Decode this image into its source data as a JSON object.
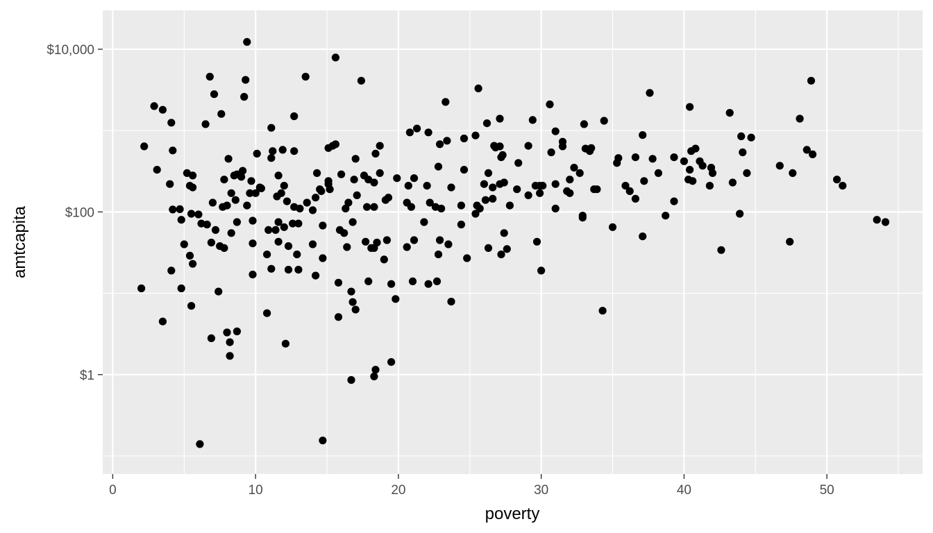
{
  "chart_data": {
    "type": "scatter",
    "title": "",
    "xlabel": "poverty",
    "ylabel": "amtcapita",
    "x_scale": "linear",
    "y_scale": "log10",
    "xlim": [
      -0.7,
      56.7
    ],
    "ylim": [
      0.06,
      30000
    ],
    "x_ticks": [
      0,
      10,
      20,
      30,
      40,
      50
    ],
    "x_tick_labels": [
      "0",
      "10",
      "20",
      "30",
      "40",
      "50"
    ],
    "y_ticks": [
      1,
      100,
      10000
    ],
    "y_tick_labels": [
      "$1",
      "$100",
      "$10,000"
    ],
    "grid": true,
    "legend": "none",
    "point_color": "#000000",
    "panel_background": "#EBEBEB",
    "points": [
      [
        9.4,
        12300
      ],
      [
        15.6,
        7900
      ],
      [
        6.8,
        4600
      ],
      [
        9.3,
        4200
      ],
      [
        13.5,
        4600
      ],
      [
        17.4,
        4100
      ],
      [
        7.1,
        2800
      ],
      [
        9.2,
        2600
      ],
      [
        2.9,
        2000
      ],
      [
        3.5,
        1800
      ],
      [
        7.6,
        1600
      ],
      [
        12.7,
        1500
      ],
      [
        4.1,
        1250
      ],
      [
        6.5,
        1200
      ],
      [
        11.1,
        1080
      ],
      [
        25.6,
        3300
      ],
      [
        23.3,
        2250
      ],
      [
        30.6,
        2100
      ],
      [
        26.2,
        1230
      ],
      [
        27.1,
        1400
      ],
      [
        29.4,
        1350
      ],
      [
        21.3,
        1060
      ],
      [
        20.8,
        950
      ],
      [
        22.1,
        950
      ],
      [
        2.2,
        640
      ],
      [
        4.2,
        570
      ],
      [
        10.1,
        520
      ],
      [
        11.2,
        560
      ],
      [
        11.9,
        580
      ],
      [
        12.7,
        560
      ],
      [
        8.1,
        450
      ],
      [
        11.1,
        460
      ],
      [
        15.1,
        610
      ],
      [
        15.6,
        680
      ],
      [
        15.4,
        650
      ],
      [
        17.0,
        450
      ],
      [
        18.4,
        520
      ],
      [
        18.7,
        650
      ],
      [
        25.4,
        870
      ],
      [
        23.4,
        750
      ],
      [
        22.9,
        680
      ],
      [
        24.6,
        800
      ],
      [
        26.7,
        650
      ],
      [
        26.8,
        620
      ],
      [
        27.1,
        640
      ],
      [
        27.3,
        500
      ],
      [
        27.2,
        470
      ],
      [
        29.1,
        650
      ],
      [
        30.7,
        540
      ],
      [
        31.0,
        980
      ],
      [
        31.5,
        730
      ],
      [
        31.5,
        640
      ],
      [
        33.0,
        1200
      ],
      [
        33.1,
        600
      ],
      [
        33.4,
        560
      ],
      [
        33.5,
        610
      ],
      [
        34.4,
        1320
      ],
      [
        37.1,
        880
      ],
      [
        37.6,
        2900
      ],
      [
        43.2,
        1650
      ],
      [
        40.4,
        1950
      ],
      [
        44.0,
        850
      ],
      [
        44.7,
        820
      ],
      [
        48.1,
        1400
      ],
      [
        48.9,
        4100
      ],
      [
        3.1,
        330
      ],
      [
        5.2,
        300
      ],
      [
        5.6,
        280
      ],
      [
        8.7,
        290
      ],
      [
        9.1,
        320
      ],
      [
        4.0,
        220
      ],
      [
        5.4,
        210
      ],
      [
        5.6,
        200
      ],
      [
        7.8,
        250
      ],
      [
        8.5,
        280
      ],
      [
        9.0,
        270
      ],
      [
        9.7,
        240
      ],
      [
        10.3,
        200
      ],
      [
        11.6,
        280
      ],
      [
        12.0,
        210
      ],
      [
        14.3,
        300
      ],
      [
        14.5,
        190
      ],
      [
        15.1,
        240
      ],
      [
        16.0,
        290
      ],
      [
        16.9,
        250
      ],
      [
        17.6,
        280
      ],
      [
        17.9,
        250
      ],
      [
        18.3,
        230
      ],
      [
        18.7,
        300
      ],
      [
        19.9,
        260
      ],
      [
        20.7,
        210
      ],
      [
        21.1,
        260
      ],
      [
        22.0,
        210
      ],
      [
        22.8,
        360
      ],
      [
        23.7,
        200
      ],
      [
        24.6,
        330
      ],
      [
        25.7,
        110
      ],
      [
        26.0,
        220
      ],
      [
        26.3,
        300
      ],
      [
        26.6,
        200
      ],
      [
        27.1,
        220
      ],
      [
        27.4,
        230
      ],
      [
        28.4,
        400
      ],
      [
        28.3,
        190
      ],
      [
        29.6,
        210
      ],
      [
        29.9,
        210
      ],
      [
        30.1,
        210
      ],
      [
        31.0,
        220
      ],
      [
        32.0,
        250
      ],
      [
        32.3,
        350
      ],
      [
        32.7,
        300
      ],
      [
        33.7,
        190
      ],
      [
        33.9,
        190
      ],
      [
        35.3,
        400
      ],
      [
        35.4,
        460
      ],
      [
        35.9,
        210
      ],
      [
        36.2,
        180
      ],
      [
        36.6,
        470
      ],
      [
        37.2,
        240
      ],
      [
        37.8,
        450
      ],
      [
        38.2,
        300
      ],
      [
        39.3,
        470
      ],
      [
        40.0,
        420
      ],
      [
        40.4,
        330
      ],
      [
        40.5,
        560
      ],
      [
        40.8,
        600
      ],
      [
        41.1,
        420
      ],
      [
        41.3,
        370
      ],
      [
        41.9,
        350
      ],
      [
        42.0,
        300
      ],
      [
        46.7,
        370
      ],
      [
        47.6,
        300
      ],
      [
        48.6,
        580
      ],
      [
        49.0,
        510
      ],
      [
        50.7,
        250
      ],
      [
        51.1,
        210
      ],
      [
        44.1,
        540
      ],
      [
        44.4,
        300
      ],
      [
        43.4,
        230
      ],
      [
        41.8,
        210
      ],
      [
        40.6,
        240
      ],
      [
        40.3,
        250
      ],
      [
        7.0,
        130
      ],
      [
        7.7,
        115
      ],
      [
        8.0,
        120
      ],
      [
        8.3,
        170
      ],
      [
        8.6,
        140
      ],
      [
        9.4,
        120
      ],
      [
        9.6,
        170
      ],
      [
        10.0,
        170
      ],
      [
        10.4,
        195
      ],
      [
        11.5,
        155
      ],
      [
        11.8,
        170
      ],
      [
        12.2,
        135
      ],
      [
        12.7,
        115
      ],
      [
        13.1,
        110
      ],
      [
        13.6,
        130
      ],
      [
        14.0,
        105
      ],
      [
        14.2,
        150
      ],
      [
        14.6,
        180
      ],
      [
        15.1,
        220
      ],
      [
        15.2,
        190
      ],
      [
        16.3,
        110
      ],
      [
        16.5,
        130
      ],
      [
        17.1,
        160
      ],
      [
        17.8,
        115
      ],
      [
        18.3,
        115
      ],
      [
        19.1,
        140
      ],
      [
        19.3,
        150
      ],
      [
        20.6,
        130
      ],
      [
        20.9,
        115
      ],
      [
        21.8,
        75
      ],
      [
        22.2,
        130
      ],
      [
        22.6,
        115
      ],
      [
        23.0,
        110
      ],
      [
        24.4,
        120
      ],
      [
        25.4,
        95
      ],
      [
        25.5,
        120
      ],
      [
        26.1,
        140
      ],
      [
        26.6,
        145
      ],
      [
        27.8,
        120
      ],
      [
        29.1,
        160
      ],
      [
        29.9,
        170
      ],
      [
        31.0,
        110
      ],
      [
        31.8,
        180
      ],
      [
        32.0,
        170
      ],
      [
        32.9,
        85
      ],
      [
        35.0,
        65
      ],
      [
        36.6,
        145
      ],
      [
        38.7,
        90
      ],
      [
        39.3,
        135
      ],
      [
        43.9,
        95
      ],
      [
        53.5,
        80
      ],
      [
        54.1,
        75
      ],
      [
        4.2,
        107
      ],
      [
        4.7,
        108
      ],
      [
        5.5,
        95
      ],
      [
        6.0,
        93
      ],
      [
        6.6,
        70
      ],
      [
        7.2,
        60
      ],
      [
        8.3,
        55
      ],
      [
        8.7,
        75
      ],
      [
        9.8,
        78
      ],
      [
        10.9,
        60
      ],
      [
        11.4,
        60
      ],
      [
        11.6,
        75
      ],
      [
        12.0,
        65
      ],
      [
        12.6,
        72
      ],
      [
        13.0,
        72
      ],
      [
        14.7,
        68
      ],
      [
        16.2,
        55
      ],
      [
        16.8,
        75
      ],
      [
        19.2,
        45
      ],
      [
        21.1,
        45
      ],
      [
        22.9,
        45
      ],
      [
        23.5,
        40
      ],
      [
        24.4,
        70
      ],
      [
        27.4,
        55
      ],
      [
        32.9,
        90
      ],
      [
        37.1,
        50
      ],
      [
        26.3,
        36
      ],
      [
        6.2,
        72
      ],
      [
        4.8,
        80
      ],
      [
        5.0,
        40
      ],
      [
        5.4,
        29
      ],
      [
        6.9,
        42
      ],
      [
        7.5,
        38
      ],
      [
        7.8,
        36
      ],
      [
        9.8,
        41
      ],
      [
        10.8,
        30
      ],
      [
        11.1,
        20
      ],
      [
        11.6,
        43
      ],
      [
        12.3,
        38
      ],
      [
        12.9,
        30
      ],
      [
        13.0,
        19.5
      ],
      [
        14.0,
        40
      ],
      [
        14.7,
        27
      ],
      [
        15.9,
        60
      ],
      [
        16.4,
        37
      ],
      [
        17.7,
        43
      ],
      [
        18.1,
        36
      ],
      [
        18.5,
        42
      ],
      [
        19.0,
        26
      ],
      [
        20.6,
        37
      ],
      [
        22.8,
        30
      ],
      [
        24.8,
        27
      ],
      [
        27.2,
        30
      ],
      [
        27.6,
        35
      ],
      [
        29.7,
        43
      ],
      [
        30.0,
        19
      ],
      [
        5.6,
        23
      ],
      [
        9.8,
        17
      ],
      [
        4.8,
        11.5
      ],
      [
        2.0,
        11.5
      ],
      [
        7.4,
        10.5
      ],
      [
        15.8,
        13.5
      ],
      [
        17.9,
        14
      ],
      [
        18.3,
        36
      ],
      [
        19.5,
        13
      ],
      [
        21.0,
        14
      ],
      [
        22.1,
        13
      ],
      [
        22.7,
        14
      ],
      [
        12.3,
        19.5
      ],
      [
        4.1,
        19
      ],
      [
        14.2,
        16.5
      ],
      [
        5.5,
        7
      ],
      [
        8.0,
        3.3
      ],
      [
        10.8,
        5.7
      ],
      [
        15.8,
        5.1
      ],
      [
        16.8,
        7.8
      ],
      [
        17.0,
        6.3
      ],
      [
        16.7,
        10.5
      ],
      [
        19.8,
        8.5
      ],
      [
        23.7,
        7.9
      ],
      [
        34.3,
        6.1
      ],
      [
        47.4,
        43
      ],
      [
        42.6,
        34
      ],
      [
        3.5,
        4.5
      ],
      [
        6.9,
        2.8
      ],
      [
        8.2,
        2.5
      ],
      [
        8.7,
        3.4
      ],
      [
        8.2,
        1.7
      ],
      [
        12.1,
        2.4
      ],
      [
        18.4,
        1.15
      ],
      [
        18.3,
        0.95
      ],
      [
        19.5,
        1.43
      ],
      [
        16.7,
        0.86
      ],
      [
        6.1,
        0.14
      ],
      [
        14.7,
        0.155
      ]
    ]
  }
}
